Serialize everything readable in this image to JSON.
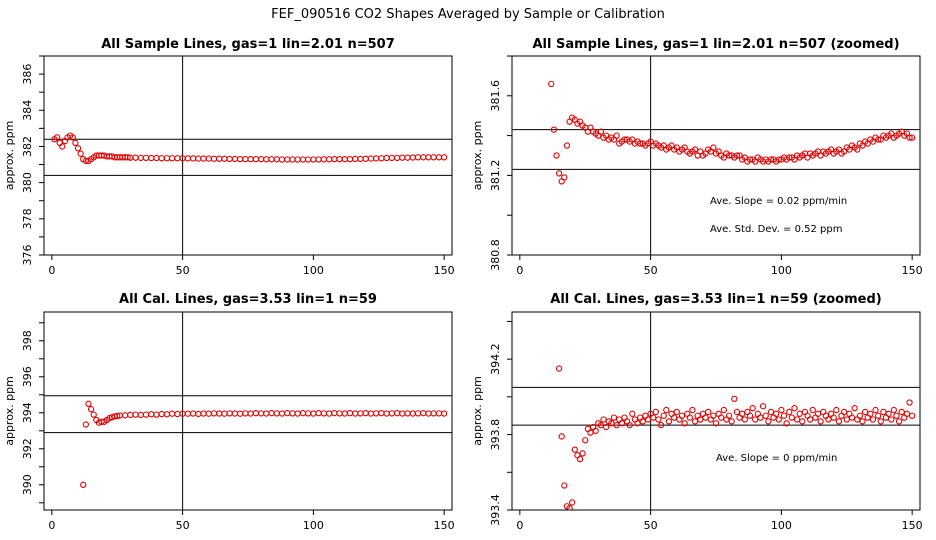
{
  "figure_title": "FEF_090516  CO2 Shapes Averaged by Sample or Calibration",
  "colors": {
    "points": "#e00000",
    "lines": "#000000",
    "background": "#ffffff"
  },
  "chart_data": [
    {
      "type": "scatter",
      "title": "All Sample Lines, gas=1 lin=2.01 n=507",
      "xlabel": "",
      "ylabel": "approx. ppm",
      "xlim": [
        -3,
        153
      ],
      "ylim": [
        376,
        387
      ],
      "xticks": [
        0,
        50,
        100,
        150
      ],
      "yticks": [
        376,
        378,
        380,
        382,
        384,
        386
      ],
      "hlines": [
        382.4,
        380.4
      ],
      "vline": 50,
      "annotations": [],
      "x": [
        1,
        2,
        3,
        4,
        5,
        6,
        7,
        8,
        9,
        10,
        11,
        12,
        13,
        14,
        15,
        16,
        17,
        18,
        19,
        20,
        21,
        22,
        23,
        24,
        25,
        26,
        27,
        28,
        29,
        30,
        32,
        34,
        36,
        38,
        40,
        42,
        44,
        46,
        48,
        50,
        52,
        54,
        56,
        58,
        60,
        62,
        64,
        66,
        68,
        70,
        72,
        74,
        76,
        78,
        80,
        82,
        84,
        86,
        88,
        90,
        92,
        94,
        96,
        98,
        100,
        102,
        104,
        106,
        108,
        110,
        112,
        114,
        116,
        118,
        120,
        122,
        124,
        126,
        128,
        130,
        132,
        134,
        136,
        138,
        140,
        142,
        144,
        146,
        148,
        150
      ],
      "y": [
        382.4,
        382.5,
        382.2,
        382.0,
        382.3,
        382.5,
        382.6,
        382.5,
        382.2,
        381.9,
        381.6,
        381.3,
        381.2,
        381.2,
        381.3,
        381.4,
        381.5,
        381.5,
        381.5,
        381.5,
        381.45,
        381.45,
        381.45,
        381.4,
        381.4,
        381.4,
        381.4,
        381.4,
        381.4,
        381.38,
        381.38,
        381.37,
        381.37,
        381.36,
        381.36,
        381.35,
        381.35,
        381.35,
        381.35,
        381.35,
        381.34,
        381.34,
        381.33,
        381.33,
        381.33,
        381.32,
        381.32,
        381.32,
        381.31,
        381.31,
        381.3,
        381.3,
        381.3,
        381.3,
        381.3,
        381.29,
        381.29,
        381.29,
        381.28,
        381.28,
        381.28,
        381.28,
        381.28,
        381.28,
        381.28,
        381.28,
        381.29,
        381.29,
        381.3,
        381.3,
        381.3,
        381.3,
        381.31,
        381.31,
        381.32,
        381.33,
        381.34,
        381.35,
        381.36,
        381.37,
        381.37,
        381.38,
        381.38,
        381.39,
        381.4,
        381.4,
        381.4,
        381.4,
        381.4,
        381.4
      ]
    },
    {
      "type": "scatter",
      "title": "All Sample Lines, gas=1 lin=2.01 n=507 (zoomed)",
      "xlabel": "",
      "ylabel": "approx. ppm",
      "xlim": [
        -3,
        153
      ],
      "ylim": [
        380.8,
        381.8
      ],
      "xticks": [
        0,
        50,
        100,
        150
      ],
      "yticks": [
        380.8,
        381.2,
        381.6
      ],
      "yticklabels": [
        "380.8",
        "381.2",
        "381.6"
      ],
      "hlines": [
        381.43,
        381.23
      ],
      "vline": 50,
      "annotations": [
        "Ave. Slope =  0.02  ppm/min",
        "Ave. Std. Dev. =  0.52  ppm"
      ],
      "x": [
        12,
        13,
        14,
        15,
        16,
        17,
        18,
        19,
        20,
        21,
        22,
        23,
        24,
        25,
        26,
        27,
        28,
        29,
        30,
        31,
        32,
        33,
        34,
        35,
        36,
        37,
        38,
        39,
        40,
        41,
        42,
        43,
        44,
        45,
        46,
        47,
        48,
        49,
        50,
        51,
        52,
        53,
        54,
        55,
        56,
        57,
        58,
        59,
        60,
        61,
        62,
        63,
        64,
        65,
        66,
        67,
        68,
        69,
        70,
        71,
        72,
        73,
        74,
        75,
        76,
        77,
        78,
        79,
        80,
        81,
        82,
        83,
        84,
        85,
        86,
        87,
        88,
        89,
        90,
        91,
        92,
        93,
        94,
        95,
        96,
        97,
        98,
        99,
        100,
        101,
        102,
        103,
        104,
        105,
        106,
        107,
        108,
        109,
        110,
        111,
        112,
        113,
        114,
        115,
        116,
        117,
        118,
        119,
        120,
        121,
        122,
        123,
        124,
        125,
        126,
        127,
        128,
        129,
        130,
        131,
        132,
        133,
        134,
        135,
        136,
        137,
        138,
        139,
        140,
        141,
        142,
        143,
        144,
        145,
        146,
        147,
        148,
        149,
        150
      ],
      "y": [
        381.66,
        381.43,
        381.3,
        381.21,
        381.17,
        381.19,
        381.35,
        381.47,
        381.49,
        381.48,
        381.46,
        381.47,
        381.45,
        381.44,
        381.42,
        381.44,
        381.42,
        381.41,
        381.4,
        381.42,
        381.39,
        381.4,
        381.38,
        381.39,
        381.38,
        381.4,
        381.36,
        381.37,
        381.38,
        381.38,
        381.37,
        381.38,
        381.36,
        381.37,
        381.36,
        381.36,
        381.35,
        381.36,
        381.37,
        381.35,
        381.36,
        381.35,
        381.34,
        381.35,
        381.33,
        381.34,
        381.35,
        381.33,
        381.34,
        381.32,
        381.33,
        381.34,
        381.32,
        381.31,
        381.32,
        381.33,
        381.3,
        381.32,
        381.3,
        381.31,
        381.33,
        381.32,
        381.34,
        381.31,
        381.32,
        381.3,
        381.29,
        381.31,
        381.3,
        381.3,
        381.29,
        381.3,
        381.3,
        381.28,
        381.29,
        381.27,
        381.28,
        381.28,
        381.27,
        381.29,
        381.28,
        381.27,
        381.28,
        381.27,
        381.28,
        381.28,
        381.27,
        381.28,
        381.28,
        381.29,
        381.28,
        381.29,
        381.29,
        381.28,
        381.3,
        381.29,
        381.3,
        381.31,
        381.29,
        381.31,
        381.3,
        381.31,
        381.32,
        381.3,
        381.32,
        381.31,
        381.32,
        381.33,
        381.31,
        381.32,
        381.33,
        381.31,
        381.32,
        381.34,
        381.33,
        381.35,
        381.34,
        381.33,
        381.36,
        381.35,
        381.37,
        381.36,
        381.38,
        381.37,
        381.39,
        381.38,
        381.38,
        381.4,
        381.39,
        381.4,
        381.41,
        381.39,
        381.4,
        381.41,
        381.42,
        381.4,
        381.41,
        381.39,
        381.39
      ]
    },
    {
      "type": "scatter",
      "title": "All Cal. Lines, gas=3.53 lin=1 n=59",
      "xlabel": "",
      "ylabel": "approx. ppm",
      "xlim": [
        -3,
        153
      ],
      "ylim": [
        388.6,
        399.6
      ],
      "xticks": [
        0,
        50,
        100,
        150
      ],
      "yticks": [
        390,
        392,
        394,
        396,
        398
      ],
      "hlines": [
        394.95,
        392.9
      ],
      "vline": 50,
      "annotations": [],
      "x": [
        12,
        13,
        14,
        15,
        16,
        17,
        18,
        19,
        20,
        21,
        22,
        23,
        24,
        25,
        26,
        28,
        30,
        32,
        34,
        36,
        38,
        40,
        42,
        44,
        46,
        48,
        50,
        52,
        54,
        56,
        58,
        60,
        62,
        64,
        66,
        68,
        70,
        72,
        74,
        76,
        78,
        80,
        82,
        84,
        86,
        88,
        90,
        92,
        94,
        96,
        98,
        100,
        102,
        104,
        106,
        108,
        110,
        112,
        114,
        116,
        118,
        120,
        122,
        124,
        126,
        128,
        130,
        132,
        134,
        136,
        138,
        140,
        142,
        144,
        146,
        148,
        150
      ],
      "y": [
        390.0,
        393.35,
        394.5,
        394.2,
        393.9,
        393.6,
        393.45,
        393.5,
        393.5,
        393.6,
        393.7,
        393.75,
        393.8,
        393.82,
        393.85,
        393.86,
        393.88,
        393.9,
        393.88,
        393.9,
        393.92,
        393.9,
        393.93,
        393.92,
        393.95,
        393.93,
        393.95,
        393.95,
        393.96,
        393.94,
        393.96,
        393.95,
        393.97,
        393.96,
        393.95,
        393.97,
        393.96,
        393.95,
        393.97,
        393.96,
        393.98,
        393.97,
        393.96,
        393.98,
        393.97,
        393.96,
        393.98,
        393.97,
        393.96,
        393.98,
        393.97,
        393.96,
        393.98,
        393.97,
        393.96,
        393.98,
        393.97,
        393.96,
        393.98,
        393.96,
        393.97,
        393.98,
        393.96,
        393.97,
        393.98,
        393.96,
        393.97,
        393.98,
        393.96,
        393.97,
        393.96,
        393.97,
        393.98,
        393.96,
        393.97,
        393.97,
        393.96
      ]
    },
    {
      "type": "scatter",
      "title": "All Cal. Lines, gas=3.53 lin=1 n=59 (zoomed)",
      "xlabel": "",
      "ylabel": "approx. ppm",
      "xlim": [
        -3,
        153
      ],
      "ylim": [
        393.4,
        394.45
      ],
      "xticks": [
        0,
        50,
        100,
        150
      ],
      "yticks": [
        393.4,
        393.8,
        394.2
      ],
      "yticklabels": [
        "393.4",
        "393.8",
        "394.2"
      ],
      "hlines": [
        394.05,
        393.85
      ],
      "vline": 50,
      "annotations": [
        "Ave. Slope =  0  ppm/min"
      ],
      "x": [
        15,
        16,
        17,
        18,
        19,
        20,
        21,
        22,
        23,
        24,
        25,
        26,
        27,
        28,
        29,
        30,
        31,
        32,
        33,
        34,
        35,
        36,
        37,
        38,
        39,
        40,
        41,
        42,
        43,
        44,
        45,
        46,
        47,
        48,
        49,
        50,
        51,
        52,
        53,
        54,
        55,
        56,
        57,
        58,
        59,
        60,
        61,
        62,
        63,
        64,
        65,
        66,
        67,
        68,
        69,
        70,
        71,
        72,
        73,
        74,
        75,
        76,
        77,
        78,
        79,
        80,
        81,
        82,
        83,
        84,
        85,
        86,
        87,
        88,
        89,
        90,
        91,
        92,
        93,
        94,
        95,
        96,
        97,
        98,
        99,
        100,
        101,
        102,
        103,
        104,
        105,
        106,
        107,
        108,
        109,
        110,
        111,
        112,
        113,
        114,
        115,
        116,
        117,
        118,
        119,
        120,
        121,
        122,
        123,
        124,
        125,
        126,
        127,
        128,
        129,
        130,
        131,
        132,
        133,
        134,
        135,
        136,
        137,
        138,
        139,
        140,
        141,
        142,
        143,
        144,
        145,
        146,
        147,
        148,
        149,
        150
      ],
      "y": [
        394.15,
        393.79,
        393.53,
        393.42,
        393.41,
        393.44,
        393.72,
        393.69,
        393.67,
        393.7,
        393.77,
        393.83,
        393.81,
        393.84,
        393.82,
        393.86,
        393.85,
        393.88,
        393.84,
        393.87,
        393.86,
        393.89,
        393.85,
        393.88,
        393.86,
        393.89,
        393.87,
        393.85,
        393.91,
        393.88,
        393.86,
        393.89,
        393.87,
        393.9,
        393.88,
        393.91,
        393.89,
        393.92,
        393.88,
        393.85,
        393.9,
        393.93,
        393.87,
        393.91,
        393.89,
        393.92,
        393.88,
        393.9,
        393.86,
        393.91,
        393.89,
        393.93,
        393.87,
        393.9,
        393.88,
        393.91,
        393.89,
        393.92,
        393.88,
        393.9,
        393.86,
        393.91,
        393.89,
        393.93,
        393.88,
        393.9,
        393.87,
        393.99,
        393.92,
        393.89,
        393.91,
        393.88,
        393.92,
        393.9,
        393.94,
        393.88,
        393.91,
        393.89,
        393.95,
        393.9,
        393.87,
        393.92,
        393.89,
        393.91,
        393.88,
        393.93,
        393.9,
        393.86,
        393.92,
        393.89,
        393.94,
        393.88,
        393.91,
        393.87,
        393.92,
        393.9,
        393.88,
        393.93,
        393.89,
        393.91,
        393.87,
        393.92,
        393.9,
        393.88,
        393.91,
        393.89,
        393.93,
        393.87,
        393.9,
        393.92,
        393.88,
        393.91,
        393.89,
        393.94,
        393.88,
        393.9,
        393.87,
        393.92,
        393.89,
        393.91,
        393.88,
        393.93,
        393.9,
        393.87,
        393.92,
        393.89,
        393.91,
        393.88,
        393.93,
        393.9,
        393.87,
        393.92,
        393.89,
        393.91,
        393.97,
        393.9
      ]
    }
  ]
}
